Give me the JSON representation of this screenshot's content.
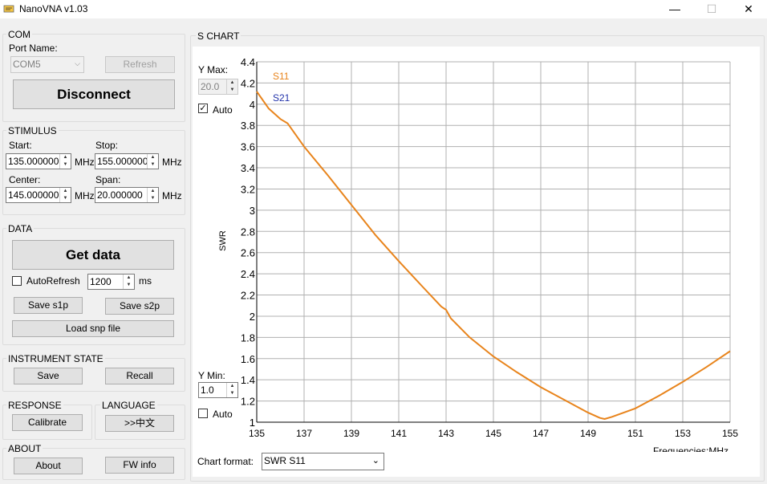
{
  "window": {
    "title": "NanoVNA v1.03",
    "minimize": "—",
    "maximize": "☐",
    "close": "✕"
  },
  "com": {
    "group_label": "COM",
    "port_label": "Port Name:",
    "port_value": "COM5",
    "refresh": "Refresh",
    "disconnect": "Disconnect"
  },
  "stimulus": {
    "group_label": "STIMULUS",
    "start_label": "Start:",
    "start_value": "135.000000",
    "stop_label": "Stop:",
    "stop_value": "155.000000",
    "center_label": "Center:",
    "center_value": "145.000000",
    "span_label": "Span:",
    "span_value": "20.000000",
    "unit": "MHz"
  },
  "data": {
    "group_label": "DATA",
    "get_data": "Get data",
    "autorefresh_label": "AutoRefresh",
    "autorefresh_checked": false,
    "interval_value": "1200",
    "interval_unit": "ms",
    "save_s1p": "Save s1p",
    "save_s2p": "Save s2p",
    "load_snp": "Load snp file"
  },
  "instrument": {
    "group_label": "INSTRUMENT STATE",
    "save": "Save",
    "recall": "Recall"
  },
  "response": {
    "group_label": "RESPONSE",
    "calibrate": "Calibrate"
  },
  "language": {
    "group_label": "LANGUAGE",
    "button": ">>中文"
  },
  "about": {
    "group_label": "ABOUT",
    "about": "About",
    "fw_info": "FW info"
  },
  "chart_group": {
    "label": "S CHART",
    "ymax_label": "Y Max:",
    "ymax_value": "20.0",
    "ymax_auto": "Auto",
    "ymax_auto_checked": true,
    "ymin_label": "Y Min:",
    "ymin_value": "1.0",
    "ymin_auto": "Auto",
    "ymin_auto_checked": false,
    "format_label": "Chart format:",
    "format_value": "SWR S11"
  },
  "chart_data": {
    "type": "line",
    "xlabel": "Frequencies:MHz",
    "ylabel": "SWR",
    "xlim": [
      135,
      155
    ],
    "ylim": [
      1,
      4.4
    ],
    "xticks": [
      135,
      137,
      139,
      141,
      143,
      145,
      147,
      149,
      151,
      153,
      155
    ],
    "yticks": [
      1,
      1.2,
      1.4,
      1.6,
      1.8,
      2,
      2.2,
      2.4,
      2.6,
      2.8,
      3,
      3.2,
      3.4,
      3.6,
      3.8,
      4,
      4.2,
      4.4
    ],
    "ytick_labels": [
      "1",
      "1.2",
      "1.4",
      "1.6",
      "1.8",
      "2",
      "2.2",
      "2.4",
      "2.6",
      "2.8",
      "3",
      "3.2",
      "3.4",
      "3.6",
      "3.8",
      "4",
      "4.2",
      "4.4"
    ],
    "grid": true,
    "legend": [
      "S11",
      "S21"
    ],
    "legend_colors": [
      "#e8841c",
      "#2233aa"
    ],
    "series": [
      {
        "name": "S11",
        "color": "#e8841c",
        "x": [
          135,
          135.5,
          136,
          136.3,
          137,
          138,
          139,
          140,
          141,
          142,
          142.8,
          143,
          143.2,
          144,
          145,
          146,
          147,
          148,
          149,
          149.5,
          149.7,
          150,
          151,
          152,
          153,
          154,
          155
        ],
        "y": [
          4.12,
          3.96,
          3.86,
          3.82,
          3.6,
          3.33,
          3.05,
          2.77,
          2.52,
          2.28,
          2.09,
          2.06,
          1.98,
          1.8,
          1.62,
          1.47,
          1.33,
          1.21,
          1.09,
          1.04,
          1.03,
          1.05,
          1.13,
          1.25,
          1.38,
          1.52,
          1.67
        ]
      },
      {
        "name": "S21",
        "color": "#2233aa",
        "x": [],
        "y": []
      }
    ]
  }
}
